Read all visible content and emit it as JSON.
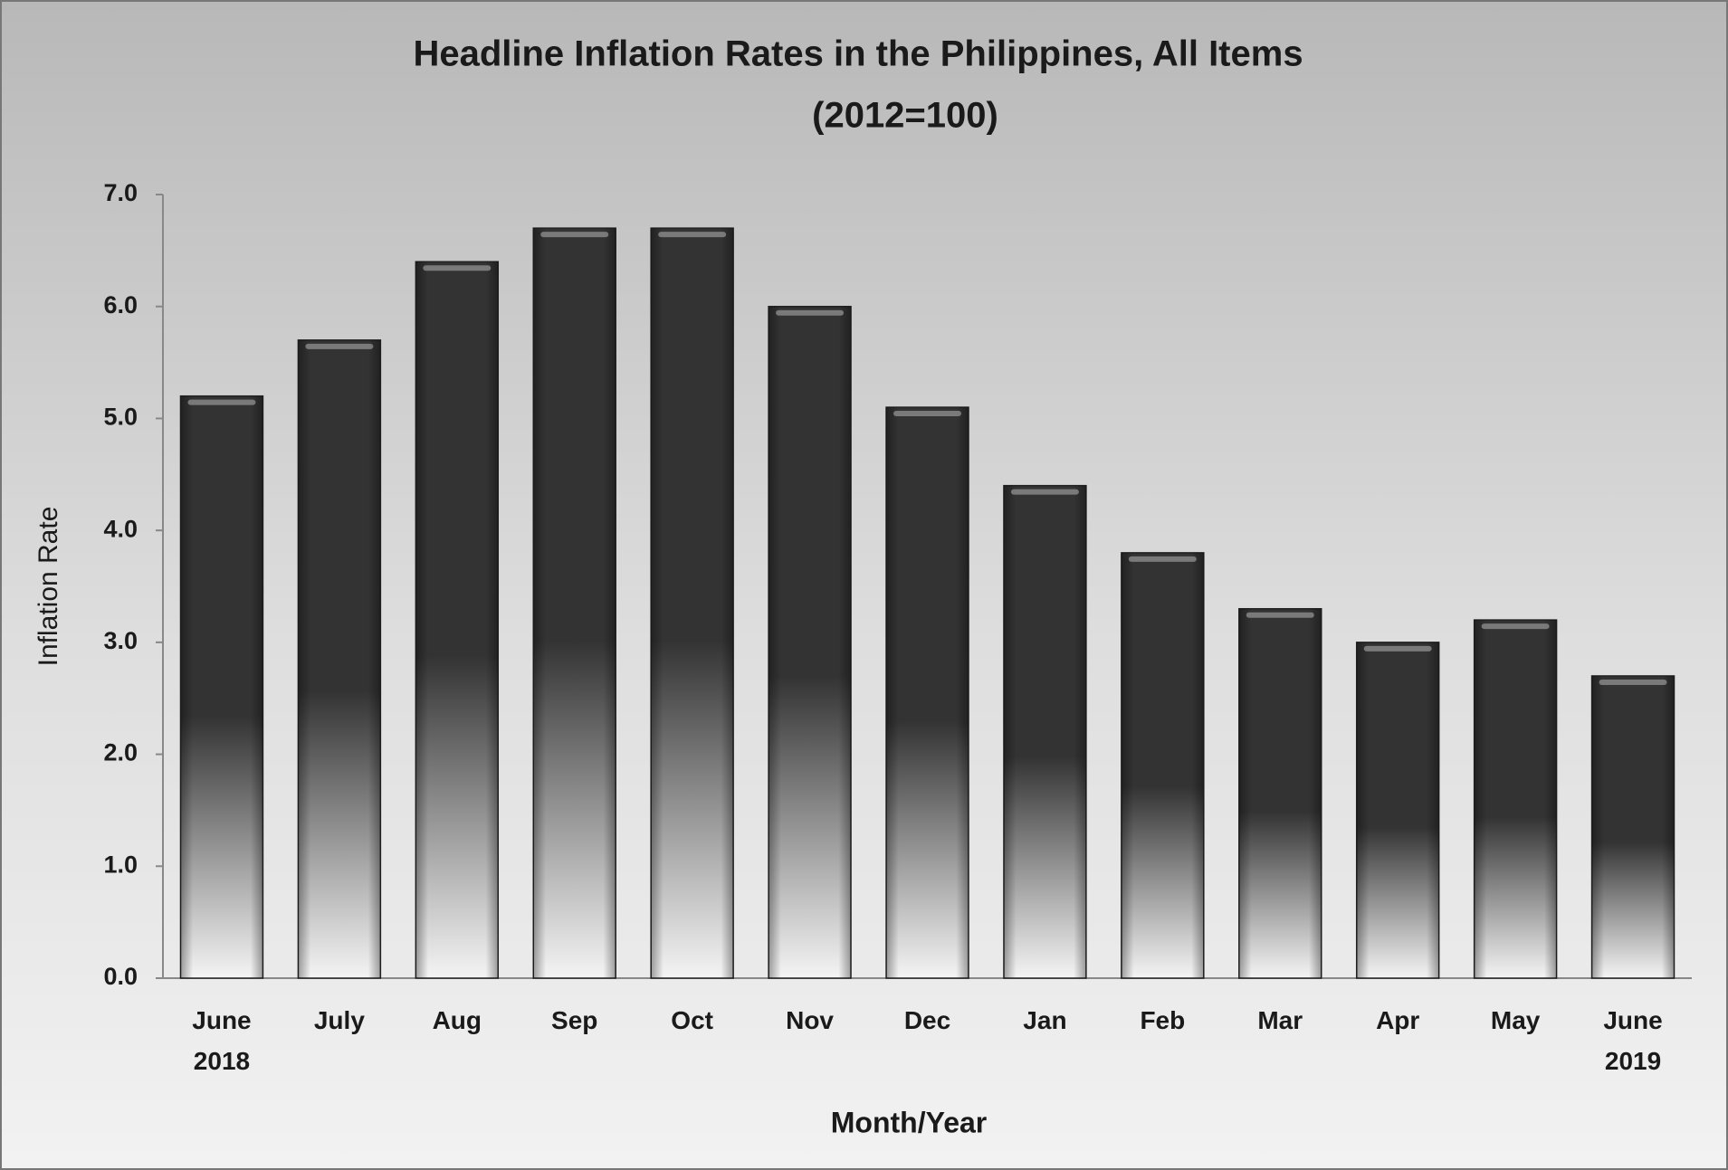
{
  "chart_data": {
    "type": "bar",
    "title": "Headline Inflation Rates in the Philippines, All Items",
    "subtitle": "(2012=100)",
    "y_label": "Inflation Rate",
    "x_label": "Month/Year",
    "categories": [
      "June 2018",
      "July",
      "Aug",
      "Sep",
      "Oct",
      "Nov",
      "Dec",
      "Jan",
      "Feb",
      "Mar",
      "Apr",
      "May",
      "June 2019"
    ],
    "values": [
      5.2,
      5.7,
      6.4,
      6.7,
      6.7,
      6.0,
      5.1,
      4.4,
      3.8,
      3.3,
      3.0,
      3.2,
      2.7
    ],
    "color": "#333333",
    "ylim": [
      0,
      7
    ],
    "yticks": [
      {
        "value": 0,
        "label": "0.0"
      },
      {
        "value": 1,
        "label": "1.0"
      },
      {
        "value": 2,
        "label": "2.0"
      },
      {
        "value": 3,
        "label": "3.0"
      },
      {
        "value": 4,
        "label": "4.0"
      },
      {
        "value": 5,
        "label": "5.0"
      },
      {
        "value": 6,
        "label": "6.0"
      },
      {
        "value": 7,
        "label": "7.0"
      }
    ],
    "grid": false
  }
}
